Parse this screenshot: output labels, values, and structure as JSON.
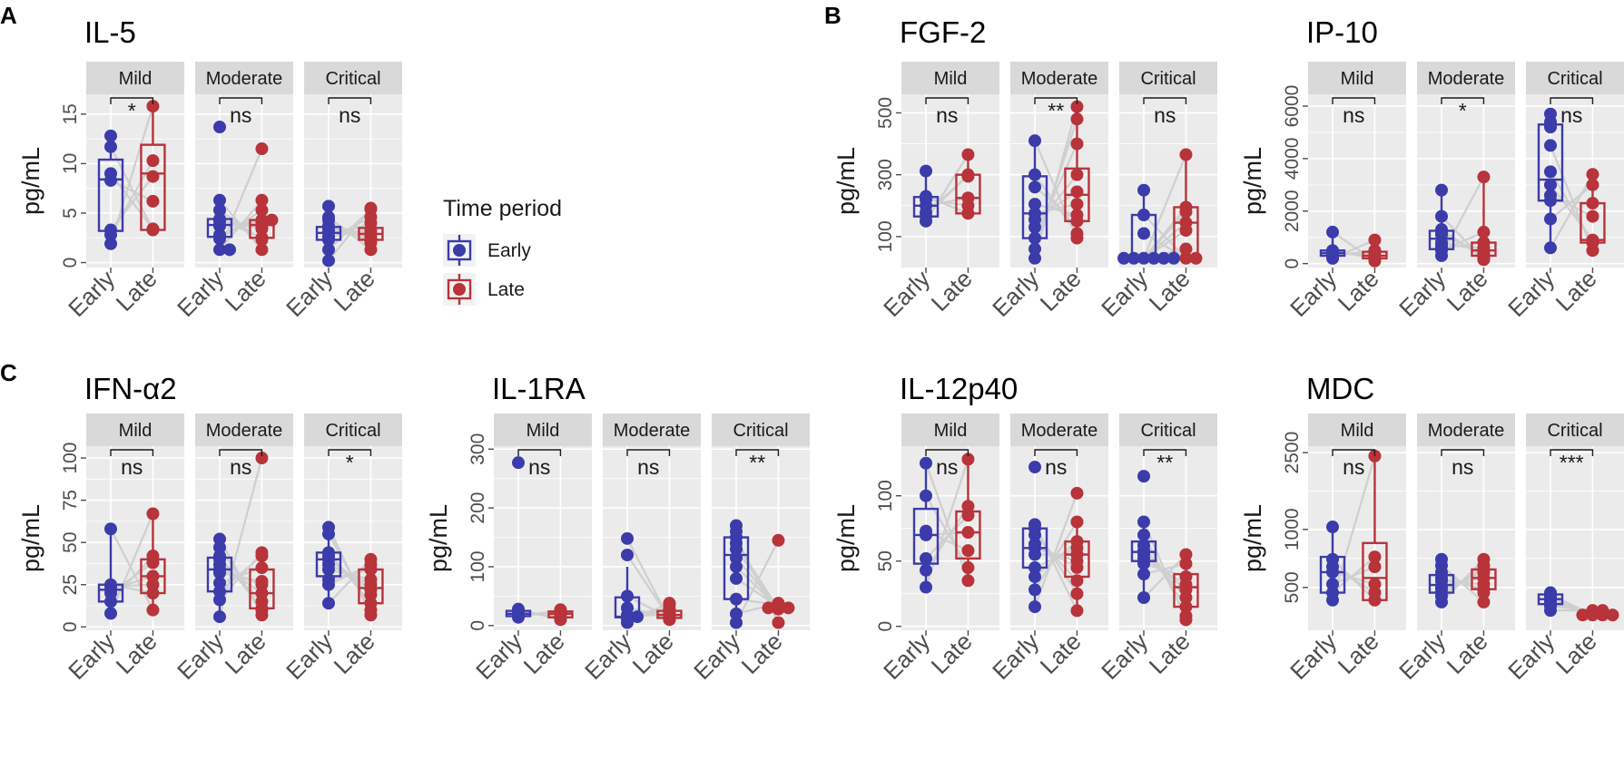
{
  "colors": {
    "early": "#3b3bab",
    "late": "#b8333a",
    "pair_line": "#cfcfcf"
  },
  "panel_tags": [
    "A",
    "B",
    "C"
  ],
  "legend": {
    "title": "Time period",
    "items": [
      {
        "label": "Early",
        "group": "early"
      },
      {
        "label": "Late",
        "group": "late"
      }
    ]
  },
  "facet_labels": [
    "Mild",
    "Moderate",
    "Critical"
  ],
  "x_labels": [
    "Early",
    "Late"
  ],
  "y_label": "pg/mL",
  "chart_data": [
    {
      "type": "box",
      "title": "IL-5",
      "ylim": [
        -0.5,
        17
      ],
      "yticks": [
        0,
        5,
        10,
        15
      ],
      "tick_labels": [
        "0",
        "5",
        "10",
        "15"
      ],
      "facets": [
        {
          "label": "Mild",
          "sig": "*",
          "early": [
            1.9,
            2.8,
            3.3,
            8.3,
            9.0,
            11.7,
            12.8
          ],
          "late": [
            3.3,
            3.4,
            6.2,
            8.7,
            10.3,
            15.8
          ],
          "early_box": [
            1.9,
            3.2,
            8.4,
            10.4,
            12.8
          ],
          "late_box": [
            3.3,
            3.3,
            9.0,
            11.9,
            15.8
          ]
        },
        {
          "label": "Moderate",
          "sig": "ns",
          "early": [
            1.3,
            1.3,
            2.4,
            2.8,
            3.7,
            3.8,
            4.2,
            4.3,
            4.4,
            5.3,
            6.3,
            13.7
          ],
          "late": [
            1.3,
            2.3,
            2.5,
            3.4,
            3.6,
            4.0,
            4.3,
            4.3,
            5.3,
            6.3,
            11.5
          ],
          "early_box": [
            1.3,
            2.6,
            3.8,
            4.4,
            6.3
          ],
          "late_box": [
            1.3,
            2.5,
            3.8,
            4.3,
            6.3
          ]
        },
        {
          "label": "Critical",
          "sig": "ns",
          "early": [
            0.2,
            1.3,
            2.3,
            2.5,
            2.6,
            3.0,
            3.1,
            3.4,
            3.7,
            4.3,
            4.6,
            5.7
          ],
          "late": [
            1.3,
            2.0,
            2.3,
            2.5,
            2.7,
            3.1,
            3.4,
            4.0,
            4.6,
            5.4,
            5.5
          ],
          "early_box": [
            0.2,
            2.3,
            3.0,
            3.6,
            5.7
          ],
          "late_box": [
            1.3,
            2.3,
            2.9,
            3.5,
            5.5
          ]
        }
      ]
    },
    {
      "type": "box",
      "title": "FGF-2",
      "ylim": [
        0,
        560
      ],
      "yticks": [
        100,
        300,
        500
      ],
      "tick_labels": [
        "100",
        "300",
        "500"
      ],
      "facets": [
        {
          "label": "Mild",
          "sig": "ns",
          "early": [
            150,
            165,
            178,
            200,
            220,
            230,
            312
          ],
          "late": [
            175,
            200,
            225,
            295,
            300,
            365
          ],
          "early_box": [
            150,
            165,
            200,
            228,
            312
          ],
          "late_box": [
            175,
            175,
            225,
            300,
            365
          ]
        },
        {
          "label": "Moderate",
          "sig": "**",
          "early": [
            30,
            60,
            95,
            130,
            155,
            175,
            205,
            260,
            300,
            410
          ],
          "late": [
            95,
            110,
            150,
            170,
            205,
            245,
            300,
            400,
            480,
            520
          ],
          "early_box": [
            30,
            95,
            175,
            295,
            410
          ],
          "late_box": [
            95,
            150,
            235,
            320,
            520
          ]
        },
        {
          "label": "Critical",
          "sig": "ns",
          "early": [
            30,
            30,
            30,
            30,
            30,
            30,
            110,
            170,
            250
          ],
          "late": [
            30,
            30,
            60,
            120,
            145,
            180,
            195,
            365
          ],
          "early_box": [
            30,
            30,
            30,
            170,
            250
          ],
          "late_box": [
            30,
            30,
            145,
            195,
            365
          ]
        }
      ]
    },
    {
      "type": "box",
      "title": "IP-10",
      "ylim": [
        -150,
        6450
      ],
      "yticks": [
        0,
        2000,
        4000,
        6000
      ],
      "tick_labels": [
        "0",
        "2000",
        "4000",
        "6000"
      ],
      "facets": [
        {
          "label": "Mild",
          "sig": "ns",
          "early": [
            200,
            300,
            350,
            400,
            500,
            1200
          ],
          "late": [
            100,
            200,
            300,
            400,
            500,
            900
          ],
          "early_box": [
            200,
            300,
            400,
            500,
            1200
          ],
          "late_box": [
            100,
            200,
            300,
            450,
            900
          ]
        },
        {
          "label": "Moderate",
          "sig": "*",
          "early": [
            300,
            500,
            600,
            700,
            800,
            1100,
            1200,
            1300,
            1800,
            2800
          ],
          "late": [
            150,
            200,
            300,
            400,
            500,
            600,
            800,
            1200,
            3300
          ],
          "early_box": [
            300,
            550,
            950,
            1250,
            2800
          ],
          "late_box": [
            150,
            300,
            500,
            800,
            3300
          ]
        },
        {
          "label": "Critical",
          "sig": "ns",
          "early": [
            600,
            1700,
            2400,
            2600,
            3000,
            3500,
            4500,
            5200,
            5400,
            5700
          ],
          "late": [
            500,
            800,
            900,
            1800,
            2300,
            3000,
            3400
          ],
          "early_box": [
            600,
            2400,
            3200,
            5300,
            5700
          ],
          "late_box": [
            500,
            800,
            900,
            2300,
            3400
          ]
        }
      ]
    },
    {
      "type": "box",
      "title": "IFN-α2",
      "ylim": [
        -2,
        107
      ],
      "yticks": [
        0,
        25,
        50,
        75,
        100
      ],
      "tick_labels": [
        "0",
        "25",
        "50",
        "75",
        "100"
      ],
      "facets": [
        {
          "label": "Mild",
          "sig": "ns",
          "early": [
            8,
            15,
            20,
            22,
            24,
            25,
            58
          ],
          "late": [
            10,
            20,
            25,
            30,
            38,
            42,
            67
          ],
          "early_box": [
            8,
            15,
            22,
            25,
            58
          ],
          "late_box": [
            10,
            20,
            30,
            40,
            67
          ]
        },
        {
          "label": "Moderate",
          "sig": "ns",
          "early": [
            6,
            16,
            21,
            26,
            32,
            34,
            37,
            40,
            42,
            47,
            52
          ],
          "late": [
            7,
            10,
            11,
            15,
            20,
            25,
            27,
            35,
            42,
            44,
            100
          ],
          "early_box": [
            6,
            21,
            34,
            41,
            52
          ],
          "late_box": [
            7,
            11,
            20,
            34,
            44
          ]
        },
        {
          "label": "Critical",
          "sig": "*",
          "early": [
            14,
            25,
            28,
            34,
            37,
            40,
            42,
            44,
            55,
            59
          ],
          "late": [
            7,
            10,
            14,
            19,
            22,
            25,
            28,
            34,
            37,
            40
          ],
          "early_box": [
            14,
            30,
            40,
            44,
            59
          ],
          "late_box": [
            7,
            14,
            23,
            34,
            40
          ]
        }
      ]
    },
    {
      "type": "box",
      "title": "IL-1RA",
      "ylim": [
        -8,
        305
      ],
      "yticks": [
        0,
        100,
        200,
        300
      ],
      "tick_labels": [
        "0",
        "100",
        "200",
        "300"
      ],
      "facets": [
        {
          "label": "Mild",
          "sig": "ns",
          "early": [
            14,
            16,
            18,
            20,
            22,
            24,
            28,
            277
          ],
          "late": [
            10,
            14,
            16,
            20,
            22,
            24,
            27
          ],
          "early_box": [
            14,
            16,
            20,
            25,
            28
          ],
          "late_box": [
            10,
            14,
            20,
            24,
            27
          ]
        },
        {
          "label": "Moderate",
          "sig": "ns",
          "early": [
            5,
            12,
            14,
            15,
            15,
            18,
            30,
            50,
            120,
            148
          ],
          "late": [
            10,
            12,
            13,
            15,
            18,
            20,
            22,
            28,
            35,
            38
          ],
          "early_box": [
            5,
            14,
            15,
            48,
            100
          ],
          "late_box": [
            10,
            13,
            18,
            25,
            38
          ]
        },
        {
          "label": "Critical",
          "sig": "**",
          "early": [
            5,
            20,
            45,
            80,
            100,
            115,
            130,
            140,
            150,
            160,
            170
          ],
          "late": [
            5,
            28,
            30,
            30,
            30,
            32,
            35,
            38,
            145
          ],
          "early_box": [
            5,
            45,
            120,
            150,
            170
          ],
          "late_box": [
            28,
            30,
            30,
            35,
            38
          ]
        }
      ]
    },
    {
      "type": "box",
      "title": "IL-12p40",
      "ylim": [
        -3,
        138
      ],
      "yticks": [
        0,
        50,
        100
      ],
      "tick_labels": [
        "0",
        "50",
        "100"
      ],
      "facets": [
        {
          "label": "Mild",
          "sig": "ns",
          "early": [
            30,
            43,
            52,
            70,
            73,
            100,
            125
          ],
          "late": [
            35,
            45,
            58,
            72,
            85,
            92,
            128
          ],
          "early_box": [
            30,
            48,
            70,
            90,
            125
          ],
          "late_box": [
            35,
            52,
            72,
            88,
            128
          ]
        },
        {
          "label": "Moderate",
          "sig": "ns",
          "early": [
            15,
            28,
            38,
            45,
            55,
            60,
            63,
            70,
            75,
            78,
            122
          ],
          "late": [
            12,
            25,
            35,
            45,
            50,
            55,
            60,
            65,
            80,
            102
          ],
          "early_box": [
            15,
            45,
            60,
            75,
            78
          ],
          "late_box": [
            12,
            38,
            55,
            65,
            80
          ]
        },
        {
          "label": "Critical",
          "sig": "**",
          "early": [
            22,
            40,
            48,
            52,
            55,
            58,
            62,
            70,
            80,
            115
          ],
          "late": [
            5,
            8,
            15,
            22,
            28,
            32,
            38,
            48,
            55
          ],
          "early_box": [
            22,
            50,
            57,
            65,
            80
          ],
          "late_box": [
            5,
            15,
            30,
            40,
            55
          ]
        }
      ]
    },
    {
      "type": "box",
      "title": "MDC",
      "ylim": [
        300,
        2700
      ],
      "yticks": [
        500,
        1000,
        2500
      ],
      "tick_labels": [
        "500",
        "1000",
        "2500"
      ],
      "y_transform": "log",
      "facets": [
        {
          "label": "Mild",
          "sig": "ns",
          "early": [
            430,
            470,
            520,
            600,
            640,
            700,
            1030
          ],
          "late": [
            430,
            470,
            520,
            640,
            720,
            2400
          ],
          "early_box": [
            430,
            470,
            600,
            720,
            1030
          ],
          "late_box": [
            430,
            430,
            560,
            850,
            2400
          ]
        },
        {
          "label": "Moderate",
          "sig": "ns",
          "early": [
            420,
            450,
            470,
            490,
            510,
            540,
            560,
            600,
            650,
            700
          ],
          "late": [
            420,
            470,
            490,
            520,
            560,
            600,
            620,
            650,
            700
          ],
          "early_box": [
            420,
            470,
            515,
            580,
            700
          ],
          "late_box": [
            420,
            490,
            560,
            620,
            700
          ]
        },
        {
          "label": "Critical",
          "sig": "***",
          "early": [
            380,
            400,
            410,
            420,
            430,
            440,
            450,
            460,
            470
          ],
          "late": [
            360,
            360,
            360,
            360,
            370,
            370,
            380,
            380
          ],
          "early_box": [
            380,
            410,
            435,
            460,
            470
          ],
          "late_box": [
            360,
            360,
            365,
            380,
            380
          ]
        }
      ]
    }
  ]
}
